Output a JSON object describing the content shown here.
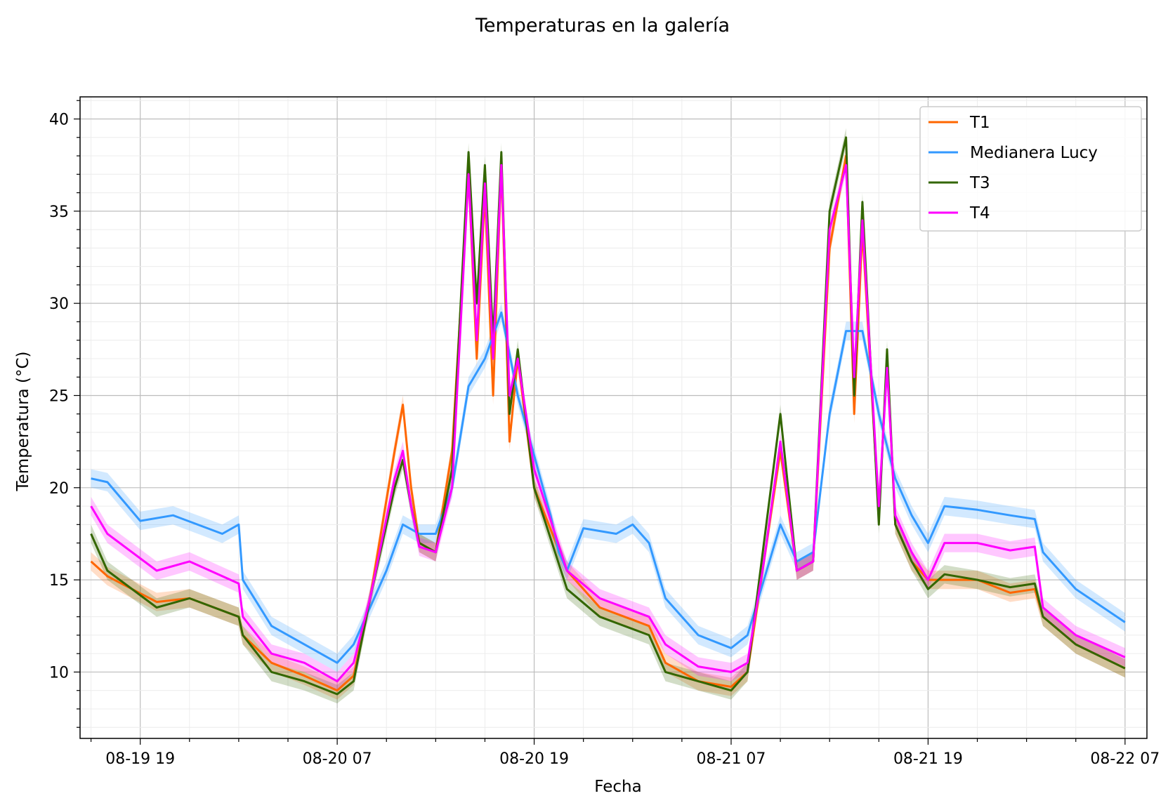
{
  "chart_data": {
    "type": "line",
    "title": "Temperaturas en la galería",
    "xlabel": "Fecha",
    "ylabel": "Temperatura (°C)",
    "xlim": [
      "2023-08-19 15:20",
      "2023-08-22 08:20"
    ],
    "ylim": [
      6.4,
      41.2
    ],
    "x_ticks": [
      "08-19 19",
      "08-20 07",
      "08-20 19",
      "08-21 07",
      "08-21 19",
      "08-22 07"
    ],
    "y_ticks": [
      "10",
      "15",
      "20",
      "25",
      "30",
      "35",
      "40"
    ],
    "grid": true,
    "minor_grid": true,
    "legend_position": "top-right",
    "band_half_width": 0.5,
    "series": [
      {
        "name": "T1",
        "color": "#ff6600",
        "points": [
          [
            "2023-08-19 16:00",
            16.0
          ],
          [
            "2023-08-19 17:00",
            15.2
          ],
          [
            "2023-08-19 20:00",
            13.8
          ],
          [
            "2023-08-19 22:00",
            14.0
          ],
          [
            "2023-08-20 01:00",
            13.0
          ],
          [
            "2023-08-20 01:15",
            12.0
          ],
          [
            "2023-08-20 03:00",
            10.5
          ],
          [
            "2023-08-20 05:00",
            9.8
          ],
          [
            "2023-08-20 07:00",
            9.0
          ],
          [
            "2023-08-20 08:00",
            9.8
          ],
          [
            "2023-08-20 09:00",
            14.0
          ],
          [
            "2023-08-20 10:30",
            22.0
          ],
          [
            "2023-08-20 11:00",
            24.5
          ],
          [
            "2023-08-20 11:30",
            20.0
          ],
          [
            "2023-08-20 12:00",
            17.0
          ],
          [
            "2023-08-20 13:00",
            16.5
          ],
          [
            "2023-08-20 14:00",
            22.0
          ],
          [
            "2023-08-20 15:00",
            37.0
          ],
          [
            "2023-08-20 15:30",
            27.0
          ],
          [
            "2023-08-20 16:00",
            36.0
          ],
          [
            "2023-08-20 16:30",
            25.0
          ],
          [
            "2023-08-20 17:00",
            37.5
          ],
          [
            "2023-08-20 17:30",
            22.5
          ],
          [
            "2023-08-20 18:00",
            27.0
          ],
          [
            "2023-08-20 19:00",
            20.0
          ],
          [
            "2023-08-20 21:00",
            15.5
          ],
          [
            "2023-08-20 23:00",
            13.5
          ],
          [
            "2023-08-21 02:00",
            12.5
          ],
          [
            "2023-08-21 03:00",
            10.5
          ],
          [
            "2023-08-21 05:00",
            9.5
          ],
          [
            "2023-08-21 07:00",
            9.2
          ],
          [
            "2023-08-21 08:00",
            10.0
          ],
          [
            "2023-08-21 09:00",
            16.0
          ],
          [
            "2023-08-21 10:00",
            22.0
          ],
          [
            "2023-08-21 11:00",
            15.5
          ],
          [
            "2023-08-21 12:00",
            16.0
          ],
          [
            "2023-08-21 13:00",
            33.0
          ],
          [
            "2023-08-21 14:00",
            38.0
          ],
          [
            "2023-08-21 14:30",
            24.0
          ],
          [
            "2023-08-21 15:00",
            34.0
          ],
          [
            "2023-08-21 16:00",
            18.5
          ],
          [
            "2023-08-21 16:30",
            27.0
          ],
          [
            "2023-08-21 17:00",
            18.0
          ],
          [
            "2023-08-21 18:00",
            16.0
          ],
          [
            "2023-08-21 19:00",
            15.0
          ],
          [
            "2023-08-21 20:00",
            15.0
          ],
          [
            "2023-08-21 22:00",
            15.0
          ],
          [
            "2023-08-22 00:00",
            14.3
          ],
          [
            "2023-08-22 01:30",
            14.5
          ],
          [
            "2023-08-22 02:00",
            13.0
          ],
          [
            "2023-08-22 04:00",
            11.5
          ],
          [
            "2023-08-22 07:00",
            10.2
          ]
        ]
      },
      {
        "name": "Medianera Lucy",
        "color": "#3399ff",
        "points": [
          [
            "2023-08-19 16:00",
            20.5
          ],
          [
            "2023-08-19 17:00",
            20.3
          ],
          [
            "2023-08-19 19:00",
            18.2
          ],
          [
            "2023-08-19 21:00",
            18.5
          ],
          [
            "2023-08-20 00:00",
            17.5
          ],
          [
            "2023-08-20 01:00",
            18.0
          ],
          [
            "2023-08-20 01:15",
            15.0
          ],
          [
            "2023-08-20 03:00",
            12.5
          ],
          [
            "2023-08-20 05:00",
            11.5
          ],
          [
            "2023-08-20 07:00",
            10.5
          ],
          [
            "2023-08-20 08:00",
            11.5
          ],
          [
            "2023-08-20 10:00",
            15.5
          ],
          [
            "2023-08-20 11:00",
            18.0
          ],
          [
            "2023-08-20 12:00",
            17.5
          ],
          [
            "2023-08-20 13:00",
            17.5
          ],
          [
            "2023-08-20 14:00",
            20.0
          ],
          [
            "2023-08-20 15:00",
            25.5
          ],
          [
            "2023-08-20 16:00",
            27.0
          ],
          [
            "2023-08-20 17:00",
            29.5
          ],
          [
            "2023-08-20 18:00",
            25.0
          ],
          [
            "2023-08-20 20:00",
            18.5
          ],
          [
            "2023-08-20 20:30",
            16.5
          ],
          [
            "2023-08-20 21:00",
            15.5
          ],
          [
            "2023-08-20 22:00",
            17.8
          ],
          [
            "2023-08-21 00:00",
            17.5
          ],
          [
            "2023-08-21 01:00",
            18.0
          ],
          [
            "2023-08-21 02:00",
            17.0
          ],
          [
            "2023-08-21 03:00",
            14.0
          ],
          [
            "2023-08-21 05:00",
            12.0
          ],
          [
            "2023-08-21 07:00",
            11.3
          ],
          [
            "2023-08-21 08:00",
            12.0
          ],
          [
            "2023-08-21 09:00",
            15.0
          ],
          [
            "2023-08-21 10:00",
            18.0
          ],
          [
            "2023-08-21 11:00",
            16.0
          ],
          [
            "2023-08-21 12:00",
            16.5
          ],
          [
            "2023-08-21 13:00",
            24.0
          ],
          [
            "2023-08-21 14:00",
            28.5
          ],
          [
            "2023-08-21 15:00",
            28.5
          ],
          [
            "2023-08-21 16:00",
            24.0
          ],
          [
            "2023-08-21 17:00",
            20.5
          ],
          [
            "2023-08-21 18:00",
            18.5
          ],
          [
            "2023-08-21 19:00",
            17.0
          ],
          [
            "2023-08-21 20:00",
            19.0
          ],
          [
            "2023-08-21 22:00",
            18.8
          ],
          [
            "2023-08-22 00:00",
            18.5
          ],
          [
            "2023-08-22 01:30",
            18.3
          ],
          [
            "2023-08-22 02:00",
            16.5
          ],
          [
            "2023-08-22 04:00",
            14.5
          ],
          [
            "2023-08-22 07:00",
            12.7
          ]
        ]
      },
      {
        "name": "T3",
        "color": "#336600",
        "points": [
          [
            "2023-08-19 16:00",
            17.5
          ],
          [
            "2023-08-19 17:00",
            15.5
          ],
          [
            "2023-08-19 20:00",
            13.5
          ],
          [
            "2023-08-19 22:00",
            14.0
          ],
          [
            "2023-08-20 01:00",
            13.0
          ],
          [
            "2023-08-20 01:15",
            12.0
          ],
          [
            "2023-08-20 03:00",
            10.0
          ],
          [
            "2023-08-20 05:00",
            9.5
          ],
          [
            "2023-08-20 07:00",
            8.8
          ],
          [
            "2023-08-20 08:00",
            9.5
          ],
          [
            "2023-08-20 09:00",
            14.0
          ],
          [
            "2023-08-20 10:30",
            20.0
          ],
          [
            "2023-08-20 11:00",
            21.5
          ],
          [
            "2023-08-20 11:30",
            19.0
          ],
          [
            "2023-08-20 12:00",
            17.0
          ],
          [
            "2023-08-20 13:00",
            16.5
          ],
          [
            "2023-08-20 14:00",
            21.0
          ],
          [
            "2023-08-20 15:00",
            38.2
          ],
          [
            "2023-08-20 15:30",
            30.0
          ],
          [
            "2023-08-20 16:00",
            37.5
          ],
          [
            "2023-08-20 16:30",
            28.0
          ],
          [
            "2023-08-20 17:00",
            38.2
          ],
          [
            "2023-08-20 17:30",
            24.0
          ],
          [
            "2023-08-20 18:00",
            27.5
          ],
          [
            "2023-08-20 19:00",
            20.0
          ],
          [
            "2023-08-20 21:00",
            14.5
          ],
          [
            "2023-08-20 23:00",
            13.0
          ],
          [
            "2023-08-21 02:00",
            12.0
          ],
          [
            "2023-08-21 03:00",
            10.0
          ],
          [
            "2023-08-21 05:00",
            9.5
          ],
          [
            "2023-08-21 07:00",
            9.0
          ],
          [
            "2023-08-21 08:00",
            10.0
          ],
          [
            "2023-08-21 09:00",
            17.0
          ],
          [
            "2023-08-21 10:00",
            24.0
          ],
          [
            "2023-08-21 11:00",
            15.5
          ],
          [
            "2023-08-21 12:00",
            16.0
          ],
          [
            "2023-08-21 13:00",
            35.0
          ],
          [
            "2023-08-21 14:00",
            39.0
          ],
          [
            "2023-08-21 14:30",
            25.0
          ],
          [
            "2023-08-21 15:00",
            35.5
          ],
          [
            "2023-08-21 16:00",
            18.0
          ],
          [
            "2023-08-21 16:30",
            27.5
          ],
          [
            "2023-08-21 17:00",
            18.0
          ],
          [
            "2023-08-21 18:00",
            16.0
          ],
          [
            "2023-08-21 19:00",
            14.5
          ],
          [
            "2023-08-21 20:00",
            15.3
          ],
          [
            "2023-08-21 22:00",
            15.0
          ],
          [
            "2023-08-22 00:00",
            14.6
          ],
          [
            "2023-08-22 01:30",
            14.8
          ],
          [
            "2023-08-22 02:00",
            13.0
          ],
          [
            "2023-08-22 04:00",
            11.5
          ],
          [
            "2023-08-22 07:00",
            10.2
          ]
        ]
      },
      {
        "name": "T4",
        "color": "#ff00ff",
        "points": [
          [
            "2023-08-19 16:00",
            19.0
          ],
          [
            "2023-08-19 17:00",
            17.5
          ],
          [
            "2023-08-19 20:00",
            15.5
          ],
          [
            "2023-08-19 22:00",
            16.0
          ],
          [
            "2023-08-20 01:00",
            14.8
          ],
          [
            "2023-08-20 01:15",
            13.0
          ],
          [
            "2023-08-20 03:00",
            11.0
          ],
          [
            "2023-08-20 05:00",
            10.5
          ],
          [
            "2023-08-20 07:00",
            9.5
          ],
          [
            "2023-08-20 08:00",
            10.5
          ],
          [
            "2023-08-20 09:00",
            14.0
          ],
          [
            "2023-08-20 10:30",
            20.5
          ],
          [
            "2023-08-20 11:00",
            22.0
          ],
          [
            "2023-08-20 11:30",
            19.0
          ],
          [
            "2023-08-20 12:00",
            16.8
          ],
          [
            "2023-08-20 13:00",
            16.5
          ],
          [
            "2023-08-20 14:00",
            20.0
          ],
          [
            "2023-08-20 15:00",
            37.0
          ],
          [
            "2023-08-20 15:30",
            28.0
          ],
          [
            "2023-08-20 16:00",
            36.5
          ],
          [
            "2023-08-20 16:30",
            27.0
          ],
          [
            "2023-08-20 17:00",
            37.5
          ],
          [
            "2023-08-20 17:30",
            25.0
          ],
          [
            "2023-08-20 18:00",
            27.0
          ],
          [
            "2023-08-20 19:00",
            21.0
          ],
          [
            "2023-08-20 21:00",
            15.5
          ],
          [
            "2023-08-20 23:00",
            14.0
          ],
          [
            "2023-08-21 02:00",
            13.0
          ],
          [
            "2023-08-21 03:00",
            11.5
          ],
          [
            "2023-08-21 05:00",
            10.3
          ],
          [
            "2023-08-21 07:00",
            10.0
          ],
          [
            "2023-08-21 08:00",
            10.5
          ],
          [
            "2023-08-21 09:00",
            16.0
          ],
          [
            "2023-08-21 10:00",
            22.5
          ],
          [
            "2023-08-21 11:00",
            15.5
          ],
          [
            "2023-08-21 12:00",
            16.0
          ],
          [
            "2023-08-21 13:00",
            34.0
          ],
          [
            "2023-08-21 14:00",
            37.5
          ],
          [
            "2023-08-21 14:30",
            26.0
          ],
          [
            "2023-08-21 15:00",
            34.5
          ],
          [
            "2023-08-21 16:00",
            19.0
          ],
          [
            "2023-08-21 16:30",
            26.5
          ],
          [
            "2023-08-21 17:00",
            18.5
          ],
          [
            "2023-08-21 18:00",
            16.5
          ],
          [
            "2023-08-21 19:00",
            15.0
          ],
          [
            "2023-08-21 20:00",
            17.0
          ],
          [
            "2023-08-21 22:00",
            17.0
          ],
          [
            "2023-08-22 00:00",
            16.6
          ],
          [
            "2023-08-22 01:30",
            16.8
          ],
          [
            "2023-08-22 02:00",
            13.5
          ],
          [
            "2023-08-22 04:00",
            12.0
          ],
          [
            "2023-08-22 07:00",
            10.8
          ]
        ]
      }
    ]
  }
}
